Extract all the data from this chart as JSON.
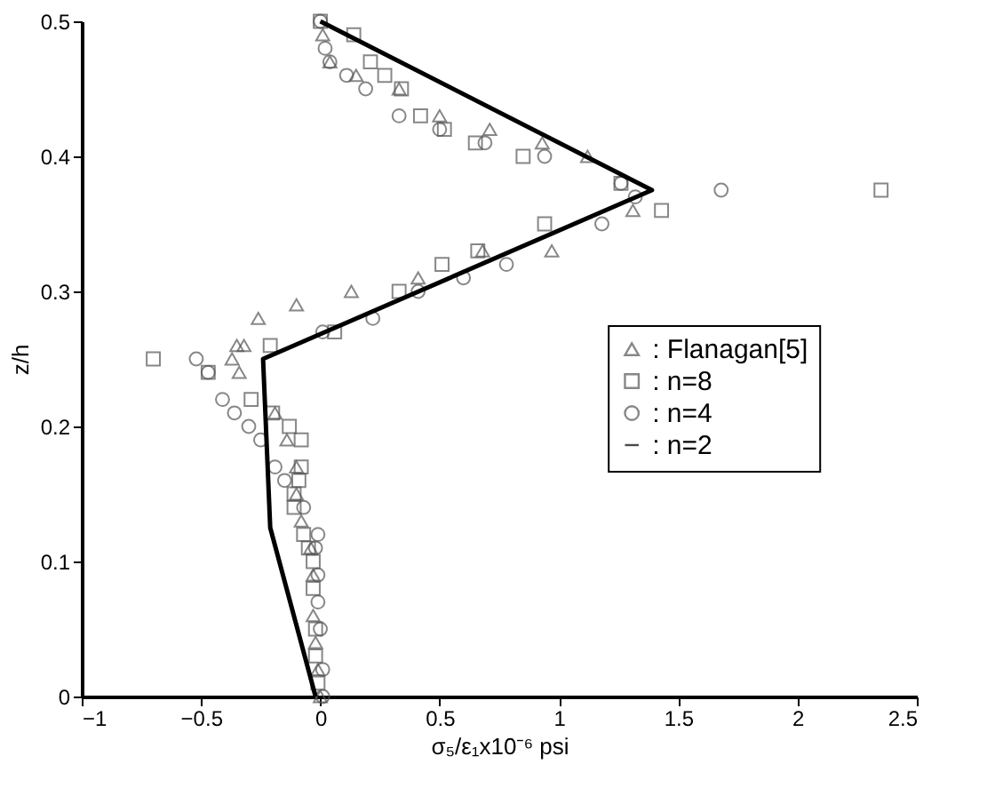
{
  "chart_data": {
    "type": "scatter",
    "xlabel": "σ₅/ε₁x10⁻⁶ psi",
    "ylabel": "z/h",
    "xlim": [
      -1,
      2.5
    ],
    "xticks": [
      -1,
      -0.5,
      0,
      0.5,
      1,
      1.5,
      2,
      2.5
    ],
    "ylim": [
      0,
      0.5
    ],
    "yticks": [
      0,
      0.1,
      0.2,
      0.3,
      0.4,
      0.5
    ],
    "grid": false,
    "legend": "right",
    "series": [
      {
        "name": ": Flanagan[5]",
        "type": "scatter",
        "marker": "triangle",
        "color": "#555555",
        "x": [
          0.01,
          0.04,
          0.15,
          0.33,
          0.5,
          0.71,
          0.93,
          1.12,
          1.31,
          0.97,
          0.68,
          0.41,
          0.13,
          -0.1,
          -0.26,
          -0.32,
          -0.35,
          -0.37,
          -0.34,
          -0.19,
          -0.14,
          -0.1,
          -0.1,
          -0.08,
          -0.04,
          -0.03,
          -0.03,
          -0.02,
          -0.01,
          0
        ],
        "values": [
          0.49,
          0.47,
          0.46,
          0.45,
          0.43,
          0.42,
          0.41,
          0.4,
          0.36,
          0.33,
          0.33,
          0.31,
          0.3,
          0.29,
          0.28,
          0.26,
          0.26,
          0.25,
          0.24,
          0.21,
          0.19,
          0.17,
          0.15,
          0.13,
          0.11,
          0.09,
          0.06,
          0.04,
          0.02,
          0
        ]
      },
      {
        "name": ": n=8",
        "type": "scatter",
        "marker": "square",
        "color": "#555555",
        "x": [
          0,
          0.14,
          0.21,
          0.27,
          0.34,
          0.42,
          0.52,
          0.65,
          0.85,
          1.26,
          1.43,
          2.35,
          0.94,
          0.66,
          0.51,
          0.33,
          0.06,
          -0.21,
          -0.7,
          -0.47,
          -0.29,
          -0.2,
          -0.13,
          -0.08,
          -0.08,
          -0.09,
          -0.11,
          -0.11,
          -0.07,
          -0.05,
          -0.03,
          -0.03,
          -0.02,
          -0.02,
          -0.01
        ],
        "values": [
          0.5,
          0.49,
          0.47,
          0.46,
          0.45,
          0.43,
          0.42,
          0.41,
          0.4,
          0.38,
          0.36,
          0.375,
          0.35,
          0.33,
          0.32,
          0.3,
          0.27,
          0.26,
          0.25,
          0.24,
          0.22,
          0.21,
          0.2,
          0.19,
          0.17,
          0.16,
          0.15,
          0.14,
          0.12,
          0.11,
          0.1,
          0.08,
          0.05,
          0.03,
          0.01
        ]
      },
      {
        "name": ": n=4",
        "type": "scatter",
        "marker": "circle",
        "color": "#555555",
        "x": [
          0,
          0.02,
          0.04,
          0.11,
          0.19,
          0.33,
          0.5,
          0.69,
          0.94,
          1.26,
          1.32,
          1.68,
          1.18,
          0.78,
          0.6,
          0.41,
          0.22,
          0.01,
          -0.52,
          -0.47,
          -0.41,
          -0.36,
          -0.3,
          -0.25,
          -0.19,
          -0.15,
          -0.07,
          -0.01,
          -0.02,
          -0.01,
          -0.01,
          0,
          0.01,
          0.01
        ],
        "values": [
          0.5,
          0.48,
          0.47,
          0.46,
          0.45,
          0.43,
          0.42,
          0.41,
          0.4,
          0.38,
          0.37,
          0.375,
          0.35,
          0.32,
          0.31,
          0.3,
          0.28,
          0.27,
          0.25,
          0.24,
          0.22,
          0.21,
          0.2,
          0.19,
          0.17,
          0.16,
          0.14,
          0.12,
          0.11,
          0.09,
          0.07,
          0.05,
          0.02,
          0
        ]
      },
      {
        "name": ": n=2",
        "type": "line",
        "marker": "none",
        "line_style": "solid",
        "color": "#000000",
        "x": [
          -0.02,
          -0.21,
          -0.24,
          1.39,
          0
        ],
        "values": [
          0,
          0.125,
          0.25,
          0.375,
          0.5
        ]
      }
    ]
  }
}
